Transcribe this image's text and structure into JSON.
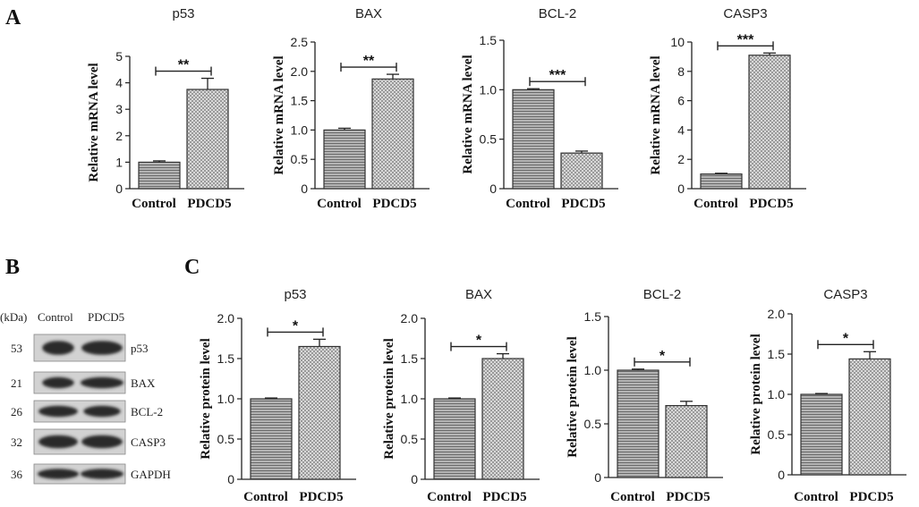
{
  "panels": {
    "a": "A",
    "b": "B",
    "c": "C"
  },
  "western_blot": {
    "kda_header": "(kDa)",
    "lane_labels": [
      "Control",
      "PDCD5"
    ],
    "rows": [
      {
        "kda": "53",
        "protein": "p53"
      },
      {
        "kda": "21",
        "protein": "BAX"
      },
      {
        "kda": "26",
        "protein": "BCL-2"
      },
      {
        "kda": "32",
        "protein": "CASP3"
      },
      {
        "kda": "36",
        "protein": "GAPDH"
      }
    ]
  },
  "colors": {
    "bar_fill": "#a9a9a9",
    "bar_stroke": "#333333",
    "axis": "#222222"
  },
  "chart_data": [
    {
      "type": "bar",
      "panel": "A",
      "title": "p53",
      "ylabel": "Relative mRNA level",
      "categories": [
        "Control",
        "PDCD5"
      ],
      "values": [
        1.0,
        3.75
      ],
      "errors": [
        0.05,
        0.42
      ],
      "ylim": [
        0,
        5
      ],
      "yticks": [
        "0",
        "1",
        "2",
        "3",
        "4",
        "5"
      ],
      "significance": "**"
    },
    {
      "type": "bar",
      "panel": "A",
      "title": "BAX",
      "ylabel": "Relative mRNA level",
      "categories": [
        "Control",
        "PDCD5"
      ],
      "values": [
        1.0,
        1.87
      ],
      "errors": [
        0.03,
        0.08
      ],
      "ylim": [
        0,
        2.5
      ],
      "yticks": [
        "0",
        "0.5",
        "1.0",
        "1.5",
        "2.0",
        "2.5"
      ],
      "significance": "**"
    },
    {
      "type": "bar",
      "panel": "A",
      "title": "BCL-2",
      "ylabel": "Relative mRNA level",
      "categories": [
        "Control",
        "PDCD5"
      ],
      "values": [
        1.0,
        0.36
      ],
      "errors": [
        0.01,
        0.02
      ],
      "ylim": [
        0,
        1.5
      ],
      "yticks": [
        "0",
        "0.5",
        "1.0",
        "1.5"
      ],
      "significance": "***"
    },
    {
      "type": "bar",
      "panel": "A",
      "title": "CASP3",
      "ylabel": "Relative mRNA level",
      "categories": [
        "Control",
        "PDCD5"
      ],
      "values": [
        1.0,
        9.1
      ],
      "errors": [
        0.05,
        0.15
      ],
      "ylim": [
        0,
        10
      ],
      "yticks": [
        "0",
        "2",
        "4",
        "6",
        "8",
        "10"
      ],
      "significance": "***"
    },
    {
      "type": "bar",
      "panel": "C",
      "title": "p53",
      "ylabel": "Relative protein level",
      "categories": [
        "Control",
        "PDCD5"
      ],
      "values": [
        1.0,
        1.65
      ],
      "errors": [
        0.01,
        0.09
      ],
      "ylim": [
        0,
        2.0
      ],
      "yticks": [
        "0",
        "0.5",
        "1.0",
        "1.5",
        "2.0"
      ],
      "significance": "*"
    },
    {
      "type": "bar",
      "panel": "C",
      "title": "BAX",
      "ylabel": "Relative protein level",
      "categories": [
        "Control",
        "PDCD5"
      ],
      "values": [
        1.0,
        1.5
      ],
      "errors": [
        0.01,
        0.06
      ],
      "ylim": [
        0,
        2.0
      ],
      "yticks": [
        "0",
        "0.5",
        "1.0",
        "1.5",
        "2.0"
      ],
      "significance": "*"
    },
    {
      "type": "bar",
      "panel": "C",
      "title": "BCL-2",
      "ylabel": "Relative protein level",
      "categories": [
        "Control",
        "PDCD5"
      ],
      "values": [
        1.0,
        0.67
      ],
      "errors": [
        0.01,
        0.04
      ],
      "ylim": [
        0,
        1.5
      ],
      "yticks": [
        "0",
        "0.5",
        "1.0",
        "1.5"
      ],
      "significance": "*"
    },
    {
      "type": "bar",
      "panel": "C",
      "title": "CASP3",
      "ylabel": "Relative protein level",
      "categories": [
        "Control",
        "PDCD5"
      ],
      "values": [
        1.0,
        1.44
      ],
      "errors": [
        0.01,
        0.09
      ],
      "ylim": [
        0,
        2.0
      ],
      "yticks": [
        "0",
        "0.5",
        "1.0",
        "1.5",
        "2.0"
      ],
      "significance": "*"
    }
  ]
}
